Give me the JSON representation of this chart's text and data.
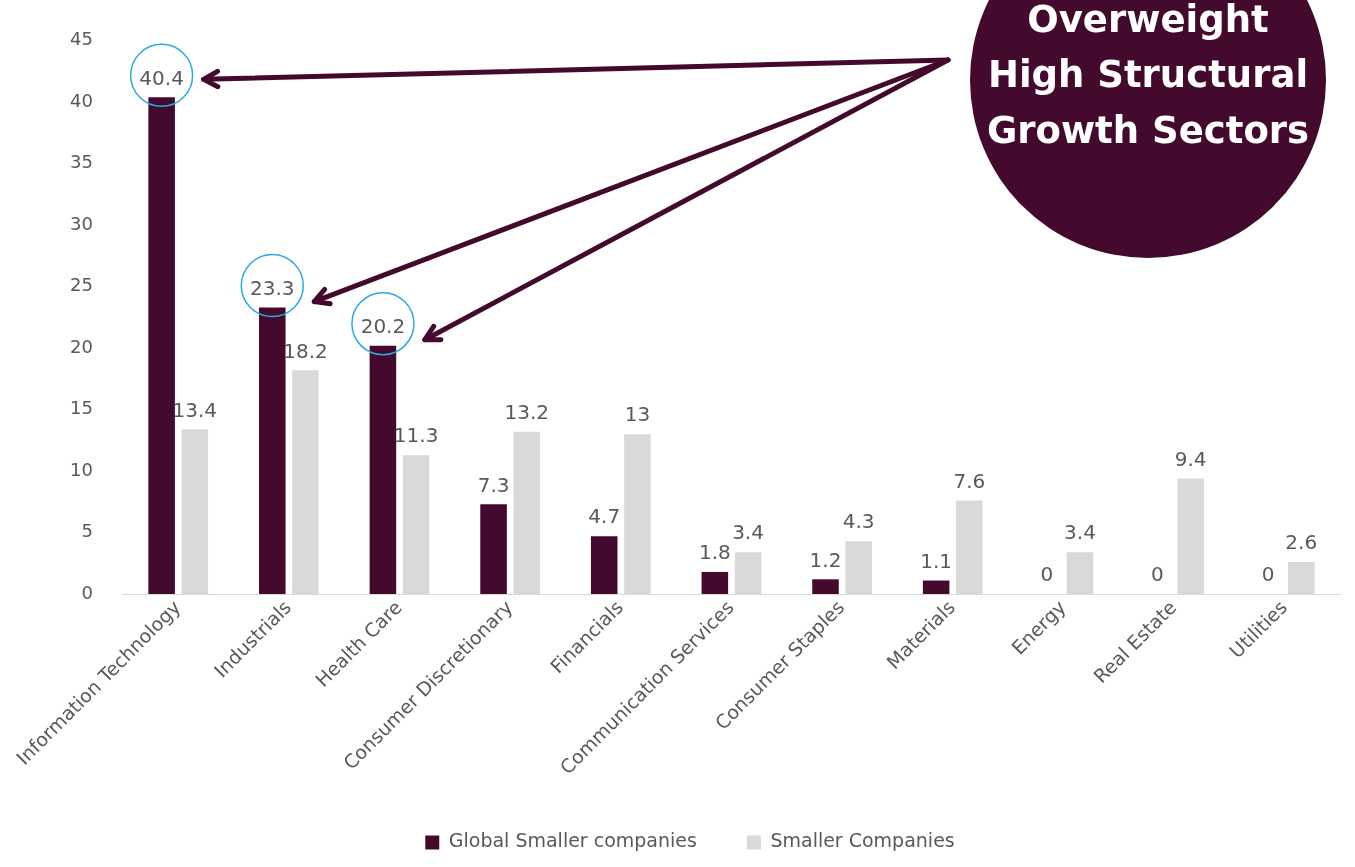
{
  "chart_data": {
    "type": "bar",
    "categories": [
      "Information Technology",
      "Industrials",
      "Health Care",
      "Consumer Discretionary",
      "Financials",
      "Communication Services",
      "Consumer Staples",
      "Materials",
      "Energy",
      "Real Estate",
      "Utilities"
    ],
    "series": [
      {
        "name": "Global Smaller companies",
        "color": "#440a2e",
        "values": [
          40.4,
          23.3,
          20.2,
          7.3,
          4.7,
          1.8,
          1.2,
          1.1,
          0,
          0,
          0
        ]
      },
      {
        "name": "Smaller Companies",
        "color": "#d9d9d9",
        "values": [
          13.4,
          18.2,
          11.3,
          13.2,
          13,
          3.4,
          4.3,
          7.6,
          3.4,
          9.4,
          2.6
        ]
      }
    ],
    "ylim": [
      0,
      45
    ],
    "yticks": [
      0,
      5,
      10,
      15,
      20,
      25,
      30,
      35,
      40,
      45
    ],
    "grid": false,
    "legend": "bottom",
    "data_labels": true,
    "annotations": [
      "Overweight High Structural Growth Sectors"
    ]
  }
}
